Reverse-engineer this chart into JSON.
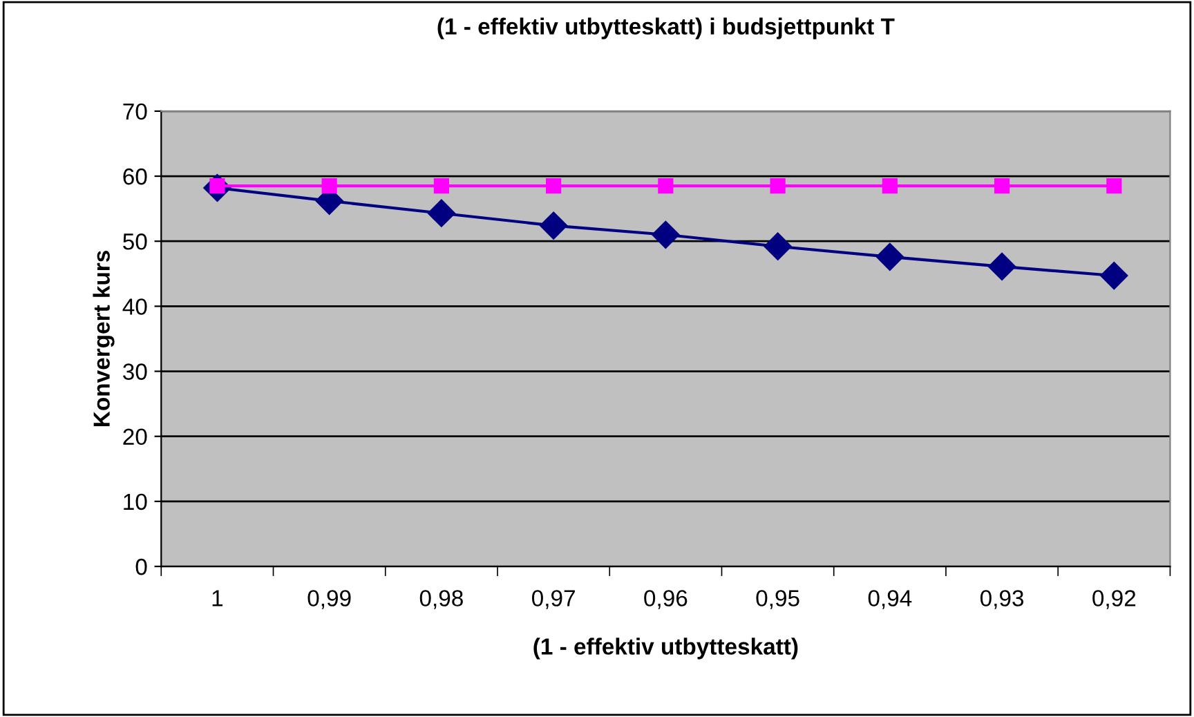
{
  "chart_data": {
    "type": "line",
    "title": "(1 - effektiv utbytteskatt) i budsjettpunkt T",
    "xlabel": "(1 - effektiv utbytteskatt)",
    "ylabel": "Konvergert kurs",
    "categories": [
      "1",
      "0,99",
      "0,98",
      "0,97",
      "0,96",
      "0,95",
      "0,94",
      "0,93",
      "0,92"
    ],
    "series": [
      {
        "color": "#000080",
        "marker": "diamond",
        "values": [
          58.2,
          56.2,
          54.3,
          52.4,
          51.0,
          49.2,
          47.6,
          46.1,
          44.7
        ]
      },
      {
        "color": "#ff00ff",
        "marker": "square",
        "values": [
          58.5,
          58.5,
          58.5,
          58.5,
          58.5,
          58.5,
          58.5,
          58.5,
          58.5
        ]
      }
    ],
    "ylim": [
      0,
      70
    ],
    "yticks": [
      0,
      10,
      20,
      30,
      40,
      50,
      60,
      70
    ],
    "grid": "y",
    "legend": false
  }
}
